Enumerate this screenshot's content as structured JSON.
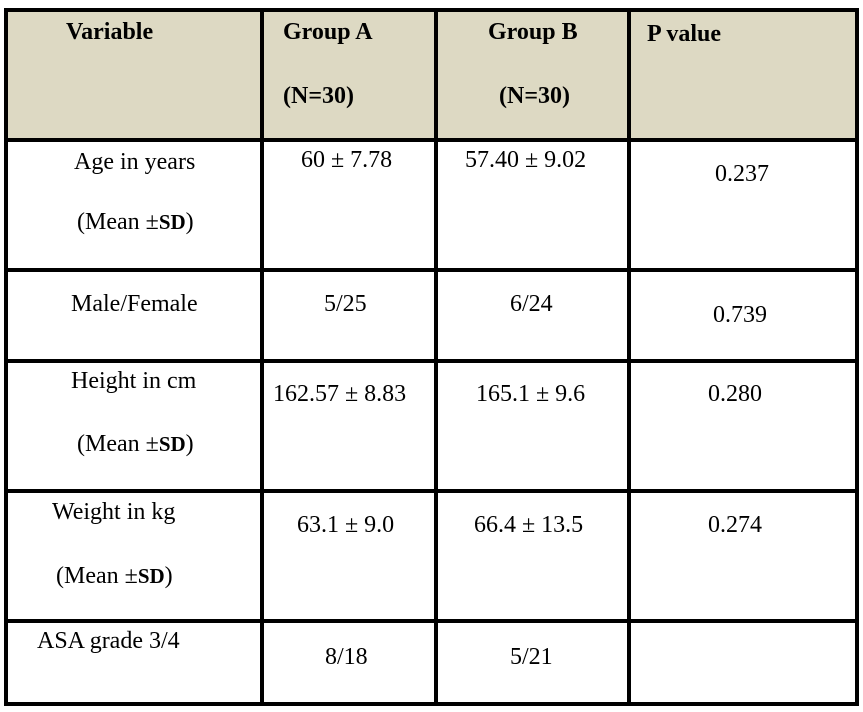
{
  "header": {
    "variable": "Variable",
    "group_a": "Group A",
    "group_a_n": "(N=30)",
    "group_b": "Group B",
    "group_b_n": "(N=30)",
    "p_value": "P value"
  },
  "rows": [
    {
      "variable": "Age in years",
      "stat_prefix": "(Mean ±",
      "stat_sd": "SD",
      "stat_suffix": ")",
      "group_a": "60 ± 7.78",
      "group_b": "57.40 ± 9.02",
      "p_value": "0.237"
    },
    {
      "variable": "Male/Female",
      "group_a": "5/25",
      "group_b": "6/24",
      "p_value": "0.739"
    },
    {
      "variable": "Height in cm",
      "stat_prefix": "(Mean ±",
      "stat_sd": "SD",
      "stat_suffix": ")",
      "group_a": "162.57 ± 8.83",
      "group_b": "165.1 ± 9.6",
      "p_value": "0.280"
    },
    {
      "variable": "Weight in kg",
      "stat_prefix": "(Mean ±",
      "stat_sd": "SD",
      "stat_suffix": ")",
      "group_a": "63.1 ± 9.0",
      "group_b": "66.4 ± 13.5",
      "p_value": "0.274"
    },
    {
      "variable": "ASA grade 3/4",
      "group_a": "8/18",
      "group_b": "5/21",
      "p_value": ""
    }
  ],
  "colors": {
    "header_bg": "#ddd9c3",
    "border": "#000000"
  }
}
